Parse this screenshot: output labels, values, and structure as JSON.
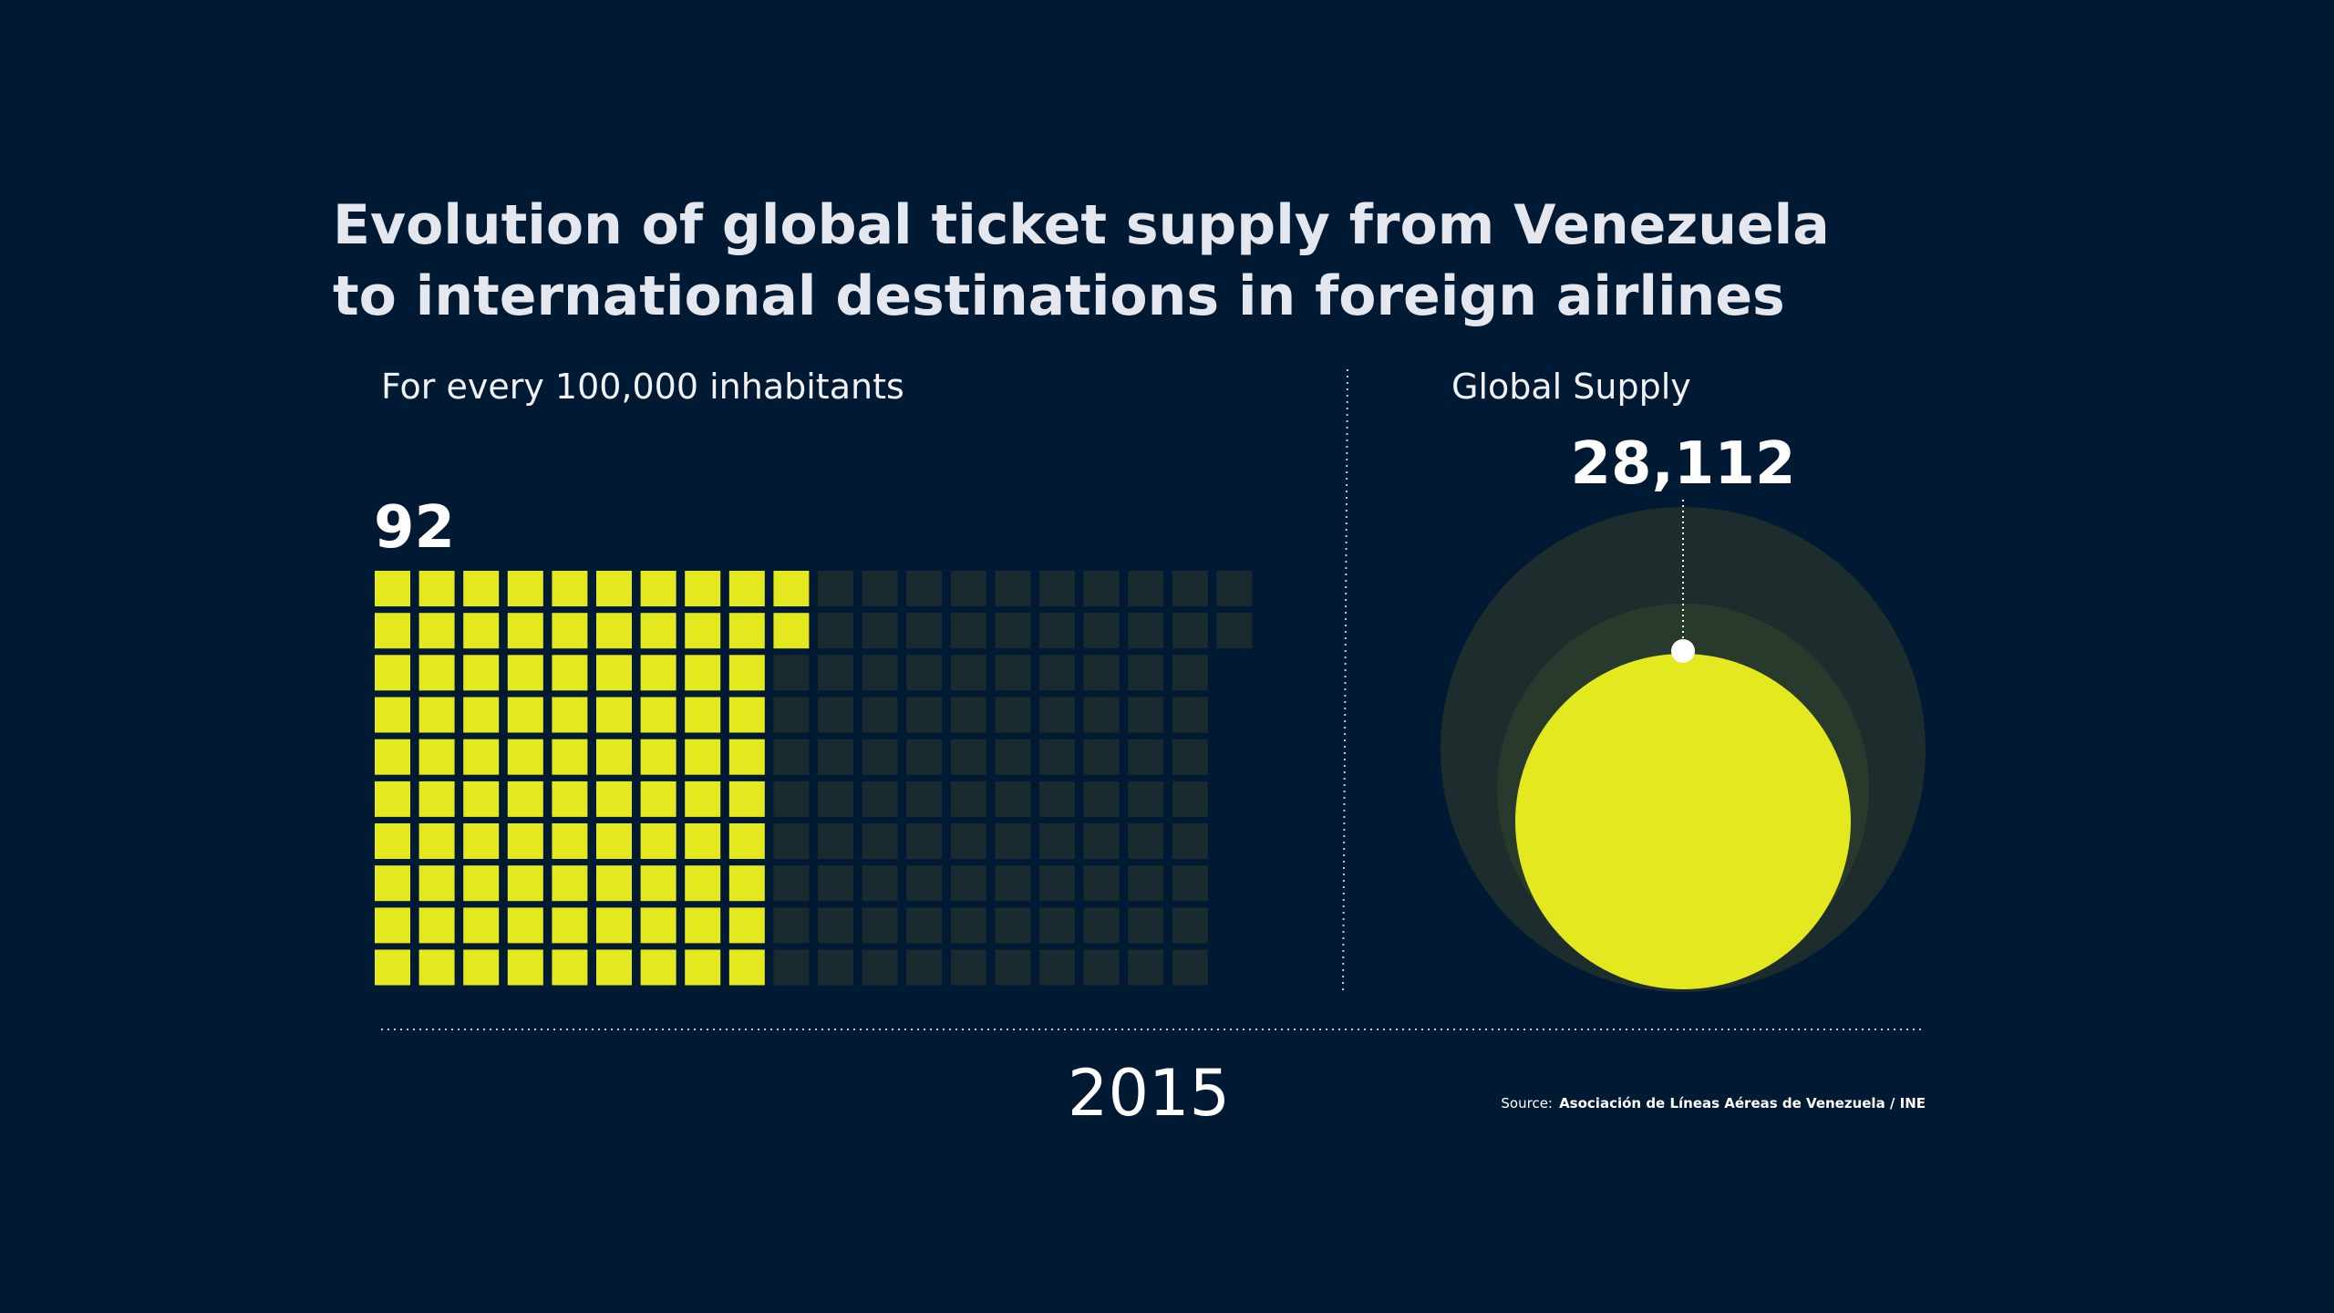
{
  "title": {
    "line1": "Evolution of global ticket supply from Venezuela",
    "line2": "to international destinations in foreign airlines"
  },
  "left_panel": {
    "subtitle": "For every 100,000 inhabitants",
    "value_label": "92"
  },
  "right_panel": {
    "subtitle": "Global Supply",
    "value_label": "28,112"
  },
  "year": "2015",
  "source": {
    "label": "Source:",
    "text": "Asociación de Líneas Aéreas de Venezuela / INE"
  },
  "colors": {
    "background": "#001a33",
    "accent": "#e3e81f",
    "empty_cell": "#1a2b2f",
    "outer_circle": "#1d2c2c",
    "middle_circle": "#283a2c"
  },
  "chart_data": [
    {
      "type": "waffle",
      "value": 92,
      "value_label": "92",
      "title": "For every 100,000 inhabitants",
      "grid": {
        "columns": 20,
        "rows": 10,
        "filled_cells": 92
      }
    },
    {
      "type": "bubble",
      "value": 28112,
      "value_label": "28,112",
      "title": "Global Supply"
    }
  ]
}
